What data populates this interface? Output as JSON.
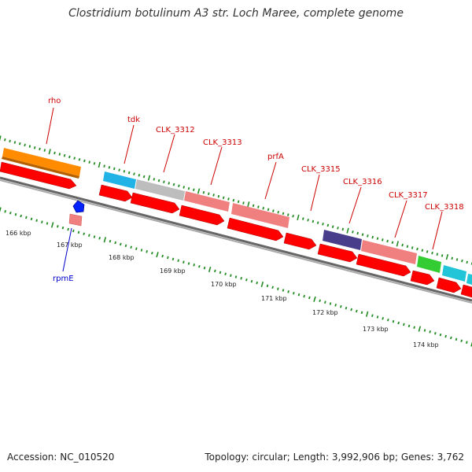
{
  "title": "Clostridium botulinum A3 str. Loch Maree, complete genome",
  "accession": "Accession: NC_010520",
  "summary": "Topology: circular; Length: 3,992,906 bp; Genes: 3,762",
  "scale_labels": [
    "166 kbp",
    "167 kbp",
    "168 kbp",
    "169 kbp",
    "170 kbp",
    "171 kbp",
    "172 kbp",
    "173 kbp",
    "174 kbp"
  ],
  "gene_labels": [
    {
      "text": "rho",
      "color": "#cc0000"
    },
    {
      "text": "tdk",
      "color": "#cc0000"
    },
    {
      "text": "CLK_3312",
      "color": "#cc0000"
    },
    {
      "text": "CLK_3313",
      "color": "#cc0000"
    },
    {
      "text": "prfA",
      "color": "#cc0000"
    },
    {
      "text": "CLK_3315",
      "color": "#cc0000"
    },
    {
      "text": "CLK_3316",
      "color": "#cc0000"
    },
    {
      "text": "CLK_3317",
      "color": "#cc0000"
    },
    {
      "text": "CLK_3318",
      "color": "#cc0000"
    },
    {
      "text": "rpmE",
      "color": "#0000cc"
    }
  ],
  "colors": {
    "cds_arrow": "#ff0000",
    "backbone": "#777777",
    "tick": "#228b22",
    "rho": "#ff8c00",
    "tdk": "#22b3e6",
    "CLK_3312": "#bdbdbd",
    "CLK_3313": "#f08080",
    "prfA": "#f08080",
    "CLK_3315": "#483d8b",
    "CLK_3316": "#f08080",
    "CLK_3317": "#33cc33",
    "CLK_3318": "#22c4d8",
    "rpmE_marker": "#0022ff",
    "rpmE_small": "#f08080"
  }
}
